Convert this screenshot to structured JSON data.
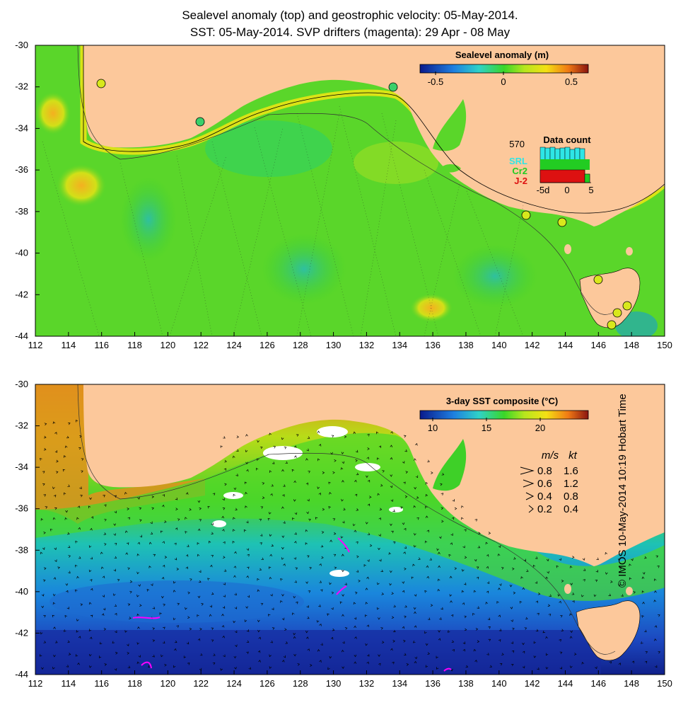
{
  "title_line1": "Sealevel anomaly (top) and geostrophic velocity: 05-May-2014.",
  "title_line2": "SST: 05-May-2014. SVP drifters (magenta): 29 Apr - 08 May",
  "x_ticks": [
    "112",
    "114",
    "116",
    "118",
    "120",
    "122",
    "124",
    "126",
    "128",
    "130",
    "132",
    "134",
    "136",
    "138",
    "140",
    "142",
    "144",
    "146",
    "148",
    "150"
  ],
  "y_ticks": [
    "-30",
    "-32",
    "-34",
    "-36",
    "-38",
    "-40",
    "-42",
    "-44"
  ],
  "top_panel": {
    "colorbar_title": "Sealevel anomaly (m)",
    "colorbar_ticks": [
      "-0.5",
      "0",
      "0.5"
    ],
    "data_count": {
      "title": "Data count",
      "max_value": "570",
      "satellites": [
        "SRL",
        "Cr2",
        "J-2"
      ],
      "satellite_colors": [
        "#2ee6e6",
        "#22cc22",
        "#dd1111"
      ],
      "x_ticks": [
        "-5d",
        "0",
        "5"
      ]
    }
  },
  "bottom_panel": {
    "colorbar_title": "3-day SST composite (°C)",
    "colorbar_ticks": [
      "10",
      "15",
      "20"
    ],
    "velocity_legend": {
      "units": [
        "m/s",
        "kt"
      ],
      "rows": [
        [
          "0.8",
          "1.6"
        ],
        [
          "0.6",
          "1.2"
        ],
        [
          "0.4",
          "0.8"
        ],
        [
          "0.2",
          "0.4"
        ]
      ]
    }
  },
  "credit": "© IMOS 10-May-2014 10:19 Hobart Time",
  "colors": {
    "land": "#fcc89b",
    "ocean_green": "#55d428",
    "drifter": "#ff00ff"
  }
}
